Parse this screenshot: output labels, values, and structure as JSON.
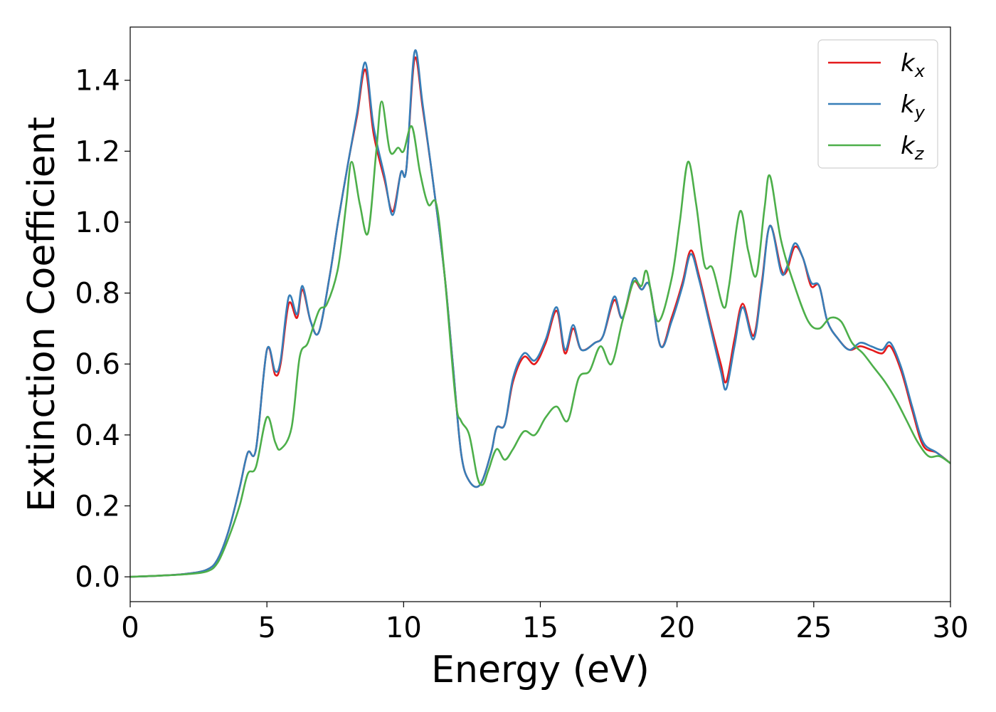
{
  "chart_data": {
    "type": "line",
    "xlabel": "Energy (eV)",
    "ylabel": "Extinction Coefficient",
    "xlim": [
      0,
      30
    ],
    "ylim": [
      -0.07,
      1.55
    ],
    "xticks": [
      0,
      5,
      10,
      15,
      20,
      25,
      30
    ],
    "xtick_labels": [
      "0",
      "5",
      "10",
      "15",
      "20",
      "25",
      "30"
    ],
    "yticks": [
      0.0,
      0.2,
      0.4,
      0.6,
      0.8,
      1.0,
      1.2,
      1.4
    ],
    "ytick_labels": [
      "0.0",
      "0.2",
      "0.4",
      "0.6",
      "0.8",
      "1.0",
      "1.2",
      "1.4"
    ],
    "grid": false,
    "legend_position": "top-right",
    "series": [
      {
        "name": "k",
        "subscript": "x",
        "color": "#e41a1c",
        "points": [
          [
            0,
            0
          ],
          [
            1,
            0.003
          ],
          [
            2,
            0.008
          ],
          [
            2.8,
            0.02
          ],
          [
            3.2,
            0.05
          ],
          [
            3.6,
            0.13
          ],
          [
            4.0,
            0.25
          ],
          [
            4.3,
            0.35
          ],
          [
            4.6,
            0.36
          ],
          [
            5.0,
            0.64
          ],
          [
            5.3,
            0.57
          ],
          [
            5.5,
            0.6
          ],
          [
            5.8,
            0.77
          ],
          [
            6.1,
            0.73
          ],
          [
            6.3,
            0.81
          ],
          [
            6.6,
            0.72
          ],
          [
            6.9,
            0.69
          ],
          [
            7.3,
            0.85
          ],
          [
            7.6,
            1.0
          ],
          [
            8.0,
            1.18
          ],
          [
            8.3,
            1.3
          ],
          [
            8.6,
            1.43
          ],
          [
            8.9,
            1.25
          ],
          [
            9.3,
            1.12
          ],
          [
            9.6,
            1.03
          ],
          [
            9.9,
            1.14
          ],
          [
            10.1,
            1.15
          ],
          [
            10.4,
            1.46
          ],
          [
            10.7,
            1.32
          ],
          [
            11.1,
            1.1
          ],
          [
            11.5,
            0.85
          ],
          [
            11.8,
            0.6
          ],
          [
            12.1,
            0.35
          ],
          [
            12.4,
            0.27
          ],
          [
            12.8,
            0.26
          ],
          [
            13.2,
            0.35
          ],
          [
            13.4,
            0.42
          ],
          [
            13.7,
            0.43
          ],
          [
            14.0,
            0.55
          ],
          [
            14.4,
            0.62
          ],
          [
            14.8,
            0.6
          ],
          [
            15.2,
            0.66
          ],
          [
            15.6,
            0.75
          ],
          [
            15.9,
            0.63
          ],
          [
            16.2,
            0.7
          ],
          [
            16.5,
            0.64
          ],
          [
            17.0,
            0.66
          ],
          [
            17.3,
            0.68
          ],
          [
            17.7,
            0.78
          ],
          [
            18.0,
            0.73
          ],
          [
            18.4,
            0.83
          ],
          [
            18.7,
            0.81
          ],
          [
            19.0,
            0.82
          ],
          [
            19.4,
            0.65
          ],
          [
            19.8,
            0.73
          ],
          [
            20.2,
            0.83
          ],
          [
            20.5,
            0.92
          ],
          [
            20.8,
            0.85
          ],
          [
            21.2,
            0.72
          ],
          [
            21.6,
            0.6
          ],
          [
            21.8,
            0.55
          ],
          [
            22.1,
            0.67
          ],
          [
            22.4,
            0.77
          ],
          [
            22.8,
            0.68
          ],
          [
            23.1,
            0.83
          ],
          [
            23.4,
            0.99
          ],
          [
            23.8,
            0.87
          ],
          [
            24.0,
            0.86
          ],
          [
            24.3,
            0.93
          ],
          [
            24.6,
            0.9
          ],
          [
            24.9,
            0.82
          ],
          [
            25.2,
            0.82
          ],
          [
            25.5,
            0.72
          ],
          [
            25.9,
            0.67
          ],
          [
            26.3,
            0.64
          ],
          [
            26.7,
            0.65
          ],
          [
            27.1,
            0.64
          ],
          [
            27.5,
            0.63
          ],
          [
            27.8,
            0.65
          ],
          [
            28.2,
            0.58
          ],
          [
            28.6,
            0.47
          ],
          [
            29.0,
            0.37
          ],
          [
            29.5,
            0.35
          ],
          [
            30.0,
            0.32
          ]
        ]
      },
      {
        "name": "k",
        "subscript": "y",
        "color": "#377eb8",
        "points": [
          [
            0,
            0
          ],
          [
            1,
            0.003
          ],
          [
            2,
            0.008
          ],
          [
            2.8,
            0.02
          ],
          [
            3.2,
            0.05
          ],
          [
            3.6,
            0.13
          ],
          [
            4.0,
            0.25
          ],
          [
            4.3,
            0.35
          ],
          [
            4.6,
            0.36
          ],
          [
            5.0,
            0.64
          ],
          [
            5.3,
            0.58
          ],
          [
            5.5,
            0.61
          ],
          [
            5.8,
            0.79
          ],
          [
            6.1,
            0.74
          ],
          [
            6.3,
            0.82
          ],
          [
            6.6,
            0.72
          ],
          [
            6.9,
            0.69
          ],
          [
            7.3,
            0.85
          ],
          [
            7.6,
            1.0
          ],
          [
            8.0,
            1.18
          ],
          [
            8.3,
            1.31
          ],
          [
            8.6,
            1.45
          ],
          [
            8.9,
            1.27
          ],
          [
            9.3,
            1.13
          ],
          [
            9.6,
            1.02
          ],
          [
            9.9,
            1.14
          ],
          [
            10.1,
            1.15
          ],
          [
            10.4,
            1.48
          ],
          [
            10.7,
            1.33
          ],
          [
            11.1,
            1.1
          ],
          [
            11.5,
            0.85
          ],
          [
            11.8,
            0.6
          ],
          [
            12.1,
            0.35
          ],
          [
            12.4,
            0.27
          ],
          [
            12.8,
            0.26
          ],
          [
            13.2,
            0.35
          ],
          [
            13.4,
            0.42
          ],
          [
            13.7,
            0.43
          ],
          [
            14.0,
            0.56
          ],
          [
            14.4,
            0.63
          ],
          [
            14.8,
            0.61
          ],
          [
            15.2,
            0.67
          ],
          [
            15.6,
            0.76
          ],
          [
            15.9,
            0.64
          ],
          [
            16.2,
            0.71
          ],
          [
            16.5,
            0.64
          ],
          [
            17.0,
            0.66
          ],
          [
            17.3,
            0.68
          ],
          [
            17.7,
            0.79
          ],
          [
            18.0,
            0.73
          ],
          [
            18.4,
            0.84
          ],
          [
            18.7,
            0.81
          ],
          [
            19.0,
            0.82
          ],
          [
            19.4,
            0.65
          ],
          [
            19.8,
            0.72
          ],
          [
            20.2,
            0.82
          ],
          [
            20.5,
            0.91
          ],
          [
            20.8,
            0.84
          ],
          [
            21.2,
            0.71
          ],
          [
            21.6,
            0.58
          ],
          [
            21.8,
            0.53
          ],
          [
            22.1,
            0.65
          ],
          [
            22.4,
            0.76
          ],
          [
            22.8,
            0.67
          ],
          [
            23.1,
            0.82
          ],
          [
            23.4,
            0.99
          ],
          [
            23.8,
            0.86
          ],
          [
            24.0,
            0.87
          ],
          [
            24.3,
            0.94
          ],
          [
            24.6,
            0.9
          ],
          [
            24.9,
            0.83
          ],
          [
            25.2,
            0.82
          ],
          [
            25.5,
            0.72
          ],
          [
            25.9,
            0.67
          ],
          [
            26.3,
            0.64
          ],
          [
            26.7,
            0.66
          ],
          [
            27.1,
            0.65
          ],
          [
            27.5,
            0.64
          ],
          [
            27.8,
            0.66
          ],
          [
            28.2,
            0.59
          ],
          [
            28.6,
            0.48
          ],
          [
            29.0,
            0.38
          ],
          [
            29.5,
            0.35
          ],
          [
            30.0,
            0.32
          ]
        ]
      },
      {
        "name": "k",
        "subscript": "z",
        "color": "#4daf4a",
        "points": [
          [
            0,
            0
          ],
          [
            1,
            0.003
          ],
          [
            2,
            0.007
          ],
          [
            2.8,
            0.015
          ],
          [
            3.2,
            0.04
          ],
          [
            3.6,
            0.11
          ],
          [
            4.0,
            0.2
          ],
          [
            4.3,
            0.29
          ],
          [
            4.6,
            0.31
          ],
          [
            5.0,
            0.45
          ],
          [
            5.3,
            0.38
          ],
          [
            5.5,
            0.36
          ],
          [
            5.9,
            0.42
          ],
          [
            6.2,
            0.62
          ],
          [
            6.5,
            0.66
          ],
          [
            6.9,
            0.75
          ],
          [
            7.2,
            0.77
          ],
          [
            7.6,
            0.87
          ],
          [
            7.9,
            1.05
          ],
          [
            8.1,
            1.17
          ],
          [
            8.4,
            1.05
          ],
          [
            8.7,
            0.97
          ],
          [
            9.0,
            1.2
          ],
          [
            9.2,
            1.34
          ],
          [
            9.5,
            1.2
          ],
          [
            9.8,
            1.21
          ],
          [
            10.0,
            1.2
          ],
          [
            10.3,
            1.27
          ],
          [
            10.6,
            1.14
          ],
          [
            10.9,
            1.05
          ],
          [
            11.2,
            1.05
          ],
          [
            11.5,
            0.85
          ],
          [
            11.9,
            0.5
          ],
          [
            12.1,
            0.44
          ],
          [
            12.4,
            0.4
          ],
          [
            12.7,
            0.28
          ],
          [
            12.9,
            0.26
          ],
          [
            13.1,
            0.3
          ],
          [
            13.4,
            0.36
          ],
          [
            13.7,
            0.33
          ],
          [
            14.0,
            0.36
          ],
          [
            14.4,
            0.41
          ],
          [
            14.8,
            0.4
          ],
          [
            15.2,
            0.45
          ],
          [
            15.6,
            0.48
          ],
          [
            16.0,
            0.44
          ],
          [
            16.4,
            0.56
          ],
          [
            16.8,
            0.58
          ],
          [
            17.2,
            0.65
          ],
          [
            17.6,
            0.6
          ],
          [
            18.0,
            0.72
          ],
          [
            18.4,
            0.83
          ],
          [
            18.7,
            0.82
          ],
          [
            18.9,
            0.86
          ],
          [
            19.3,
            0.72
          ],
          [
            19.8,
            0.84
          ],
          [
            20.1,
            1.0
          ],
          [
            20.4,
            1.17
          ],
          [
            20.7,
            1.05
          ],
          [
            21.0,
            0.88
          ],
          [
            21.3,
            0.87
          ],
          [
            21.7,
            0.76
          ],
          [
            21.9,
            0.82
          ],
          [
            22.3,
            1.03
          ],
          [
            22.6,
            0.92
          ],
          [
            22.9,
            0.85
          ],
          [
            23.2,
            1.04
          ],
          [
            23.4,
            1.13
          ],
          [
            23.8,
            0.95
          ],
          [
            24.3,
            0.82
          ],
          [
            24.8,
            0.72
          ],
          [
            25.2,
            0.7
          ],
          [
            25.6,
            0.73
          ],
          [
            26.0,
            0.72
          ],
          [
            26.4,
            0.66
          ],
          [
            26.8,
            0.63
          ],
          [
            27.2,
            0.59
          ],
          [
            27.6,
            0.55
          ],
          [
            28.0,
            0.5
          ],
          [
            28.4,
            0.44
          ],
          [
            28.8,
            0.38
          ],
          [
            29.2,
            0.34
          ],
          [
            29.6,
            0.34
          ],
          [
            30.0,
            0.32
          ]
        ]
      }
    ]
  }
}
